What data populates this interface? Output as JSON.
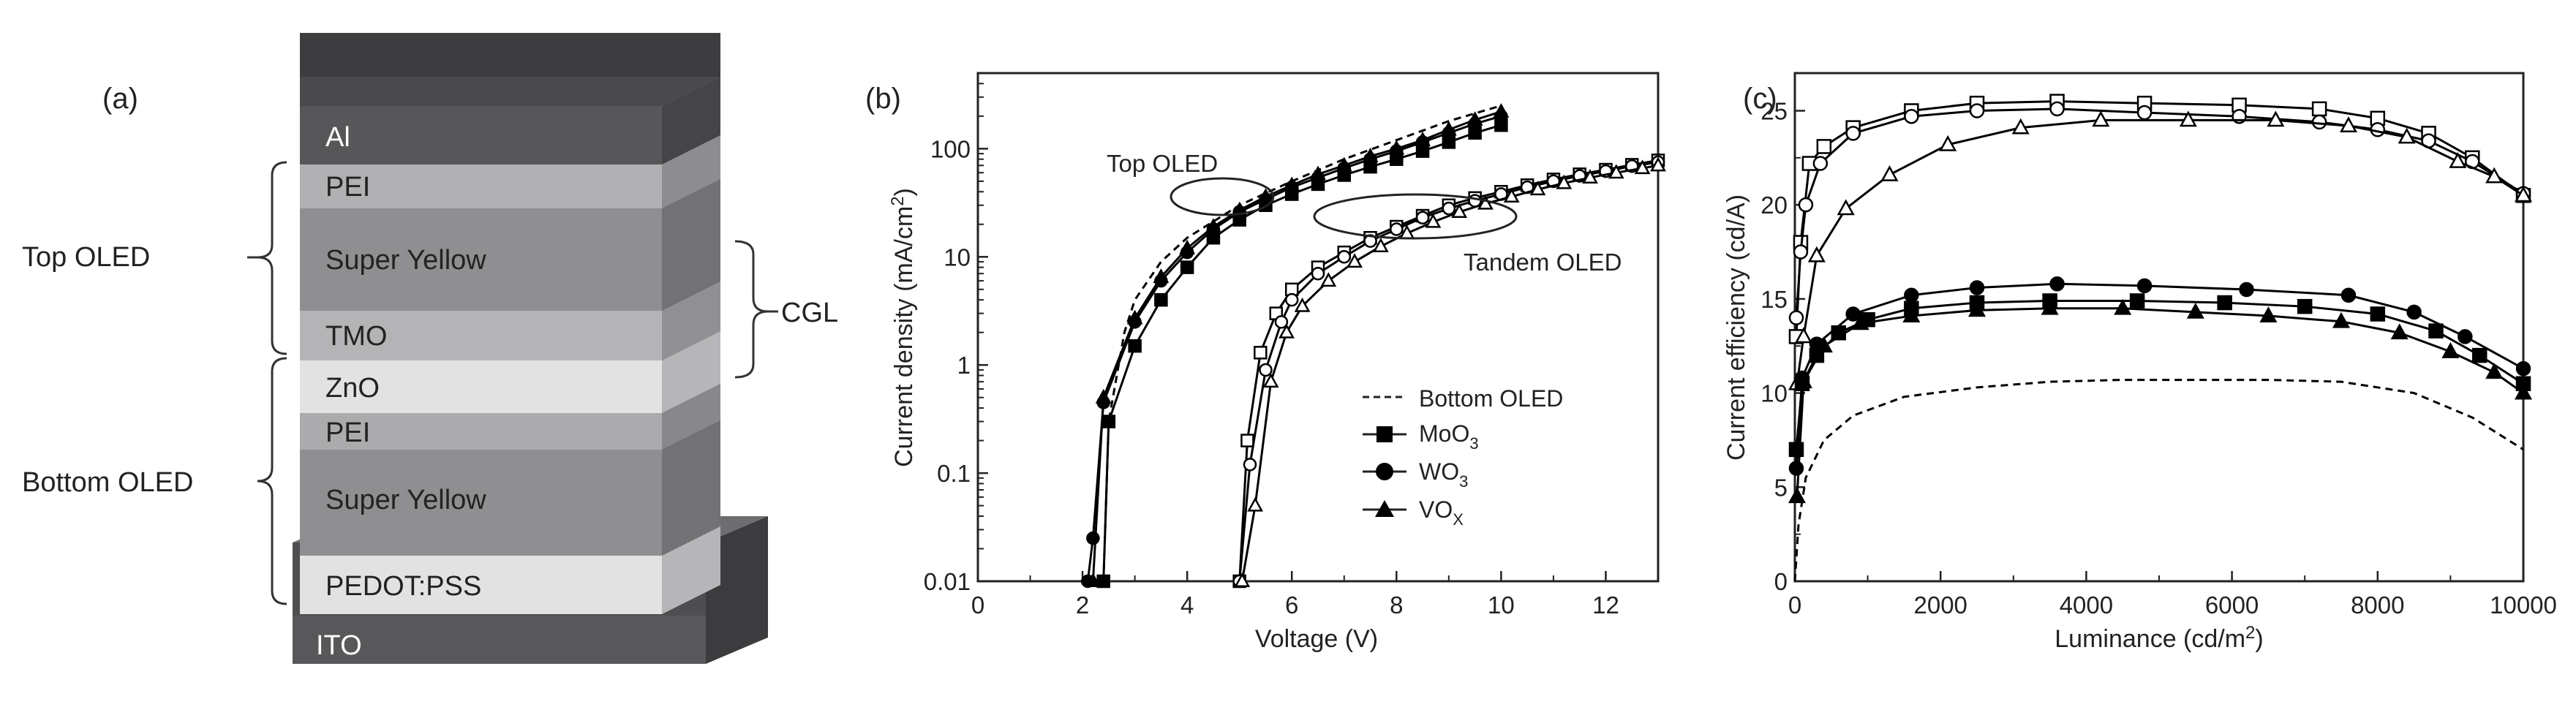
{
  "panel_a": {
    "label": "(a)",
    "layers": [
      {
        "name": "Al",
        "color": "#57575a"
      },
      {
        "name": "PEI",
        "color": "#b1b1b3"
      },
      {
        "name": "Super Yellow",
        "color": "#8f8f92"
      },
      {
        "name": "TMO",
        "color": "#b4b4b6"
      },
      {
        "name": "ZnO",
        "color": "#e2e2e3"
      },
      {
        "name": "PEI",
        "color": "#ababad"
      },
      {
        "name": "Super Yellow",
        "color": "#8f8f92"
      },
      {
        "name": "PEDOT:PSS",
        "color": "#e2e2e3"
      }
    ],
    "substrate": {
      "name": "ITO",
      "color": "#58585b"
    },
    "brackets": {
      "top": "Top OLED",
      "bottom": "Bottom OLED",
      "cgl": "CGL"
    }
  },
  "chart_data": [
    {
      "panel": "(b)",
      "type": "line",
      "xlabel": "Voltage (V)",
      "ylabel": "Current density (mA/cm²)",
      "ylabel_text": "Current density (mA/cm",
      "ylabel_sup": "2",
      "ylabel_end": ")",
      "xlim": [
        0,
        13
      ],
      "ylim": [
        0.01,
        500
      ],
      "yscale": "log",
      "x_ticks": [
        0,
        2,
        4,
        6,
        8,
        10,
        12
      ],
      "y_ticks": [
        0.01,
        0.1,
        1,
        10,
        100
      ],
      "y_tick_labels": [
        "0.01",
        "0.1",
        "1",
        "10",
        "100"
      ],
      "annotations": [
        "Top OLED",
        "Tandem OLED"
      ],
      "legend": [
        {
          "label": "Bottom OLED",
          "sub": "",
          "marker": "dashed"
        },
        {
          "label": "MoO",
          "sub": "3",
          "marker": "square"
        },
        {
          "label": "WO",
          "sub": "3",
          "marker": "circle"
        },
        {
          "label": "VO",
          "sub": "X",
          "marker": "triangle"
        }
      ],
      "series": [
        {
          "name": "Bottom OLED",
          "style": "dashed",
          "points": [
            [
              2.4,
              0.01
            ],
            [
              2.5,
              0.3
            ],
            [
              2.8,
              2
            ],
            [
              3,
              4
            ],
            [
              3.5,
              9
            ],
            [
              4,
              15
            ],
            [
              5,
              30
            ],
            [
              6,
              50
            ],
            [
              7,
              80
            ],
            [
              8,
              120
            ],
            [
              9,
              180
            ],
            [
              10,
              250
            ]
          ]
        },
        {
          "name": "MoO3 (top)",
          "marker": "square",
          "fill": "filled",
          "points": [
            [
              2.4,
              0.01
            ],
            [
              2.5,
              0.3
            ],
            [
              3,
              1.5
            ],
            [
              3.5,
              4
            ],
            [
              4,
              8
            ],
            [
              4.5,
              15
            ],
            [
              5,
              22
            ],
            [
              5.5,
              30
            ],
            [
              6,
              38
            ],
            [
              6.5,
              47
            ],
            [
              7,
              57
            ],
            [
              7.5,
              68
            ],
            [
              8,
              80
            ],
            [
              8.5,
              95
            ],
            [
              9,
              115
            ],
            [
              9.5,
              140
            ],
            [
              10,
              165
            ]
          ]
        },
        {
          "name": "WO3 (top)",
          "marker": "circle",
          "fill": "filled",
          "points": [
            [
              2.1,
              0.01
            ],
            [
              2.2,
              0.025
            ],
            [
              2.4,
              0.45
            ],
            [
              3,
              2.5
            ],
            [
              3.5,
              6
            ],
            [
              4,
              11
            ],
            [
              4.5,
              18
            ],
            [
              5,
              26
            ],
            [
              5.5,
              34
            ],
            [
              6,
              44
            ],
            [
              6.5,
              54
            ],
            [
              7,
              66
            ],
            [
              7.5,
              80
            ],
            [
              8,
              95
            ],
            [
              8.5,
              115
            ],
            [
              9,
              140
            ],
            [
              9.5,
              170
            ],
            [
              10,
              200
            ]
          ]
        },
        {
          "name": "VOX (top)",
          "marker": "triangle",
          "fill": "filled",
          "points": [
            [
              2.2,
              0.01
            ],
            [
              2.4,
              0.5
            ],
            [
              3,
              2.7
            ],
            [
              3.5,
              6.5
            ],
            [
              4,
              12
            ],
            [
              4.5,
              19
            ],
            [
              5,
              27
            ],
            [
              5.5,
              36
            ],
            [
              6,
              46
            ],
            [
              6.5,
              58
            ],
            [
              7,
              70
            ],
            [
              7.5,
              85
            ],
            [
              8,
              100
            ],
            [
              8.5,
              120
            ],
            [
              9,
              150
            ],
            [
              9.5,
              185
            ],
            [
              10,
              220
            ]
          ]
        },
        {
          "name": "MoO3 (tandem)",
          "marker": "square",
          "fill": "open",
          "points": [
            [
              5,
              0.01
            ],
            [
              5.15,
              0.2
            ],
            [
              5.4,
              1.3
            ],
            [
              5.7,
              3
            ],
            [
              6,
              5
            ],
            [
              6.5,
              8
            ],
            [
              7,
              11
            ],
            [
              7.5,
              15
            ],
            [
              8,
              19
            ],
            [
              8.5,
              24
            ],
            [
              9,
              30
            ],
            [
              9.5,
              35
            ],
            [
              10,
              40
            ],
            [
              10.5,
              46
            ],
            [
              11,
              52
            ],
            [
              11.5,
              58
            ],
            [
              12,
              64
            ],
            [
              12.5,
              71
            ],
            [
              13,
              78
            ]
          ]
        },
        {
          "name": "WO3 (tandem)",
          "marker": "circle",
          "fill": "open",
          "points": [
            [
              5,
              0.01
            ],
            [
              5.2,
              0.12
            ],
            [
              5.5,
              0.9
            ],
            [
              5.8,
              2.5
            ],
            [
              6,
              4
            ],
            [
              6.5,
              7
            ],
            [
              7,
              10
            ],
            [
              7.5,
              14
            ],
            [
              8,
              18
            ],
            [
              8.5,
              23
            ],
            [
              9,
              28
            ],
            [
              9.5,
              33
            ],
            [
              10,
              38
            ],
            [
              10.5,
              44
            ],
            [
              11,
              50
            ],
            [
              11.5,
              56
            ],
            [
              12,
              62
            ],
            [
              12.5,
              69
            ],
            [
              13,
              75
            ]
          ]
        },
        {
          "name": "VOX (tandem)",
          "marker": "triangle",
          "fill": "open",
          "points": [
            [
              5.05,
              0.01
            ],
            [
              5.3,
              0.05
            ],
            [
              5.6,
              0.7
            ],
            [
              5.9,
              2
            ],
            [
              6.2,
              3.5
            ],
            [
              6.7,
              6
            ],
            [
              7.2,
              9
            ],
            [
              7.7,
              12.5
            ],
            [
              8.2,
              16.5
            ],
            [
              8.7,
              21
            ],
            [
              9.2,
              26
            ],
            [
              9.7,
              31
            ],
            [
              10.2,
              36
            ],
            [
              10.7,
              42
            ],
            [
              11.2,
              48
            ],
            [
              11.7,
              54
            ],
            [
              12.2,
              60
            ],
            [
              12.7,
              66
            ],
            [
              13,
              70
            ]
          ]
        }
      ]
    },
    {
      "panel": "(c)",
      "type": "line",
      "xlabel": "Luminance (cd/m²)",
      "xlabel_text": "Luminance (cd/m",
      "xlabel_sup": "2",
      "xlabel_end": ")",
      "ylabel": "Current efficiency (cd/A)",
      "xlim": [
        0,
        10000
      ],
      "ylim": [
        0,
        27
      ],
      "x_ticks": [
        0,
        2000,
        4000,
        6000,
        8000,
        10000
      ],
      "y_ticks": [
        0,
        5,
        10,
        15,
        20,
        25
      ],
      "series": [
        {
          "name": "Bottom OLED",
          "style": "dashed",
          "points": [
            [
              0,
              0
            ],
            [
              50,
              3
            ],
            [
              150,
              5.5
            ],
            [
              400,
              7.5
            ],
            [
              800,
              8.8
            ],
            [
              1500,
              9.8
            ],
            [
              2500,
              10.3
            ],
            [
              3500,
              10.6
            ],
            [
              4500,
              10.7
            ],
            [
              5500,
              10.7
            ],
            [
              6500,
              10.7
            ],
            [
              7500,
              10.6
            ],
            [
              8500,
              10.0
            ],
            [
              9300,
              8.7
            ],
            [
              10000,
              7.0
            ]
          ]
        },
        {
          "name": "MoO3 (tandem)",
          "marker": "square",
          "fill": "open",
          "points": [
            [
              20,
              13
            ],
            [
              80,
              18
            ],
            [
              200,
              22.2
            ],
            [
              400,
              23.1
            ],
            [
              800,
              24.1
            ],
            [
              1600,
              25.0
            ],
            [
              2500,
              25.4
            ],
            [
              3600,
              25.5
            ],
            [
              4800,
              25.4
            ],
            [
              6100,
              25.3
            ],
            [
              7200,
              25.1
            ],
            [
              8000,
              24.6
            ],
            [
              8700,
              23.8
            ],
            [
              9300,
              22.5
            ],
            [
              10000,
              20.5
            ]
          ]
        },
        {
          "name": "WO3 (tandem)",
          "marker": "circle",
          "fill": "open",
          "points": [
            [
              20,
              14
            ],
            [
              80,
              17.5
            ],
            [
              150,
              20
            ],
            [
              350,
              22.2
            ],
            [
              800,
              23.8
            ],
            [
              1600,
              24.7
            ],
            [
              2500,
              25.0
            ],
            [
              3600,
              25.1
            ],
            [
              4800,
              24.9
            ],
            [
              6100,
              24.7
            ],
            [
              7200,
              24.4
            ],
            [
              8000,
              24.0
            ],
            [
              8700,
              23.4
            ],
            [
              9300,
              22.3
            ],
            [
              10000,
              20.6
            ]
          ]
        },
        {
          "name": "VOX (tandem)",
          "marker": "triangle",
          "fill": "open",
          "points": [
            [
              30,
              10.5
            ],
            [
              120,
              13
            ],
            [
              300,
              17.3
            ],
            [
              700,
              19.8
            ],
            [
              1300,
              21.6
            ],
            [
              2100,
              23.2
            ],
            [
              3100,
              24.1
            ],
            [
              4200,
              24.5
            ],
            [
              5400,
              24.5
            ],
            [
              6600,
              24.5
            ],
            [
              7600,
              24.2
            ],
            [
              8400,
              23.6
            ],
            [
              9100,
              22.3
            ],
            [
              9600,
              21.5
            ],
            [
              10000,
              20.5
            ]
          ]
        },
        {
          "name": "MoO3 (top)",
          "marker": "square",
          "fill": "filled",
          "points": [
            [
              20,
              7
            ],
            [
              100,
              10.5
            ],
            [
              300,
              12.0
            ],
            [
              600,
              13.2
            ],
            [
              1000,
              13.9
            ],
            [
              1600,
              14.5
            ],
            [
              2500,
              14.8
            ],
            [
              3500,
              14.9
            ],
            [
              4700,
              14.9
            ],
            [
              5900,
              14.8
            ],
            [
              7000,
              14.6
            ],
            [
              8000,
              14.2
            ],
            [
              8800,
              13.3
            ],
            [
              9400,
              12.0
            ],
            [
              10000,
              10.5
            ]
          ]
        },
        {
          "name": "WO3 (top)",
          "marker": "circle",
          "fill": "filled",
          "points": [
            [
              20,
              6
            ],
            [
              100,
              10.8
            ],
            [
              300,
              12.6
            ],
            [
              800,
              14.2
            ],
            [
              1600,
              15.2
            ],
            [
              2500,
              15.6
            ],
            [
              3600,
              15.8
            ],
            [
              4800,
              15.7
            ],
            [
              6200,
              15.5
            ],
            [
              7600,
              15.2
            ],
            [
              8500,
              14.3
            ],
            [
              9200,
              13.0
            ],
            [
              10000,
              11.3
            ]
          ]
        },
        {
          "name": "VOX (top)",
          "marker": "triangle",
          "fill": "filled",
          "points": [
            [
              30,
              4.5
            ],
            [
              120,
              10.6
            ],
            [
              400,
              12.5
            ],
            [
              900,
              13.7
            ],
            [
              1600,
              14.1
            ],
            [
              2500,
              14.4
            ],
            [
              3500,
              14.5
            ],
            [
              4500,
              14.5
            ],
            [
              5500,
              14.3
            ],
            [
              6500,
              14.1
            ],
            [
              7500,
              13.8
            ],
            [
              8300,
              13.2
            ],
            [
              9000,
              12.2
            ],
            [
              9600,
              11.1
            ],
            [
              10000,
              10.0
            ]
          ]
        }
      ]
    }
  ]
}
